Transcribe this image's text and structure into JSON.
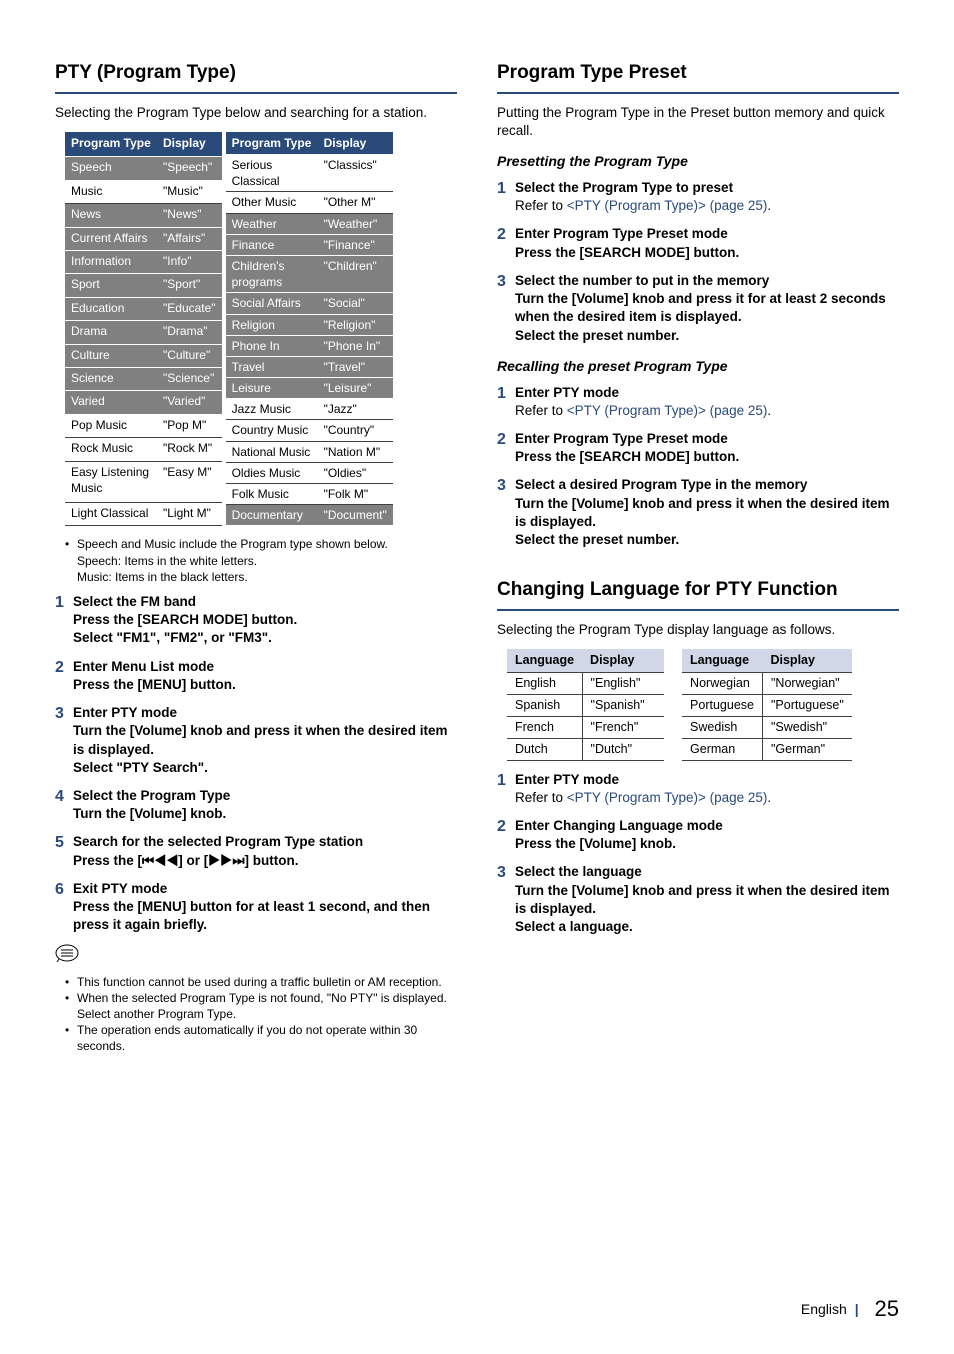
{
  "left": {
    "heading": "PTY (Program Type)",
    "intro": "Selecting the Program Type below and searching for a station.",
    "table_headers": {
      "c1": "Program Type",
      "c2": "Display"
    },
    "table1": [
      {
        "t": "Speech",
        "d": "\"Speech\"",
        "s": true
      },
      {
        "t": "Music",
        "d": "\"Music\"",
        "s": false
      },
      {
        "t": "News",
        "d": "\"News\"",
        "s": true
      },
      {
        "t": "Current Affairs",
        "d": "\"Affairs\"",
        "s": true
      },
      {
        "t": "Information",
        "d": "\"Info\"",
        "s": true
      },
      {
        "t": "Sport",
        "d": "\"Sport\"",
        "s": true
      },
      {
        "t": "Education",
        "d": "\"Educate\"",
        "s": true
      },
      {
        "t": "Drama",
        "d": "\"Drama\"",
        "s": true
      },
      {
        "t": "Culture",
        "d": "\"Culture\"",
        "s": true
      },
      {
        "t": "Science",
        "d": "\"Science\"",
        "s": true
      },
      {
        "t": "Varied",
        "d": "\"Varied\"",
        "s": true
      },
      {
        "t": "Pop Music",
        "d": "\"Pop M\"",
        "s": false
      },
      {
        "t": "Rock Music",
        "d": "\"Rock M\"",
        "s": false
      },
      {
        "t": "Easy Listening Music",
        "d": "\"Easy M\"",
        "s": false
      },
      {
        "t": "Light Classical",
        "d": "\"Light M\"",
        "s": false
      }
    ],
    "table2": [
      {
        "t": "Serious Classical",
        "d": "\"Classics\"",
        "s": false
      },
      {
        "t": "Other Music",
        "d": "\"Other M\"",
        "s": false
      },
      {
        "t": "Weather",
        "d": "\"Weather\"",
        "s": true
      },
      {
        "t": "Finance",
        "d": "\"Finance\"",
        "s": true
      },
      {
        "t": "Children's programs",
        "d": "\"Children\"",
        "s": true
      },
      {
        "t": "Social Affairs",
        "d": "\"Social\"",
        "s": true
      },
      {
        "t": "Religion",
        "d": "\"Religion\"",
        "s": true
      },
      {
        "t": "Phone In",
        "d": "\"Phone In\"",
        "s": true
      },
      {
        "t": "Travel",
        "d": "\"Travel\"",
        "s": true
      },
      {
        "t": "Leisure",
        "d": "\"Leisure\"",
        "s": true
      },
      {
        "t": "Jazz Music",
        "d": "\"Jazz\"",
        "s": false
      },
      {
        "t": "Country Music",
        "d": "\"Country\"",
        "s": false
      },
      {
        "t": "National Music",
        "d": "\"Nation M\"",
        "s": false
      },
      {
        "t": "Oldies Music",
        "d": "\"Oldies\"",
        "s": false
      },
      {
        "t": "Folk Music",
        "d": "\"Folk M\"",
        "s": false
      },
      {
        "t": "Documentary",
        "d": "\"Document\"",
        "s": true
      }
    ],
    "note1_a": "Speech and Music include the Program type shown below.",
    "note1_b": "Speech: Items in the white letters.",
    "note1_c": "Music: Items in the black letters.",
    "steps": [
      {
        "n": "1",
        "title": "Select the FM band",
        "lines": [
          "Press the [SEARCH MODE] button.",
          "Select \"FM1\", \"FM2\", or \"FM3\"."
        ]
      },
      {
        "n": "2",
        "title": "Enter Menu List mode",
        "lines": [
          "Press the [MENU] button."
        ]
      },
      {
        "n": "3",
        "title": "Enter PTY mode",
        "lines": [
          "Turn the [Volume] knob and press it when the desired item is displayed.",
          "Select \"PTY Search\"."
        ]
      },
      {
        "n": "4",
        "title": "Select the Program Type",
        "lines": [
          "Turn the [Volume] knob."
        ]
      },
      {
        "n": "5",
        "title": "Search for the selected Program Type station",
        "lines": [
          "Press the [⏮◀◀] or [▶▶⏭] button."
        ]
      },
      {
        "n": "6",
        "title": "Exit PTY mode",
        "lines": [
          "Press the [MENU] button for at least 1 second, and then press it again briefly."
        ]
      }
    ],
    "note2_a": "This function cannot be used during a traffic bulletin or AM reception.",
    "note2_b": "When the selected Program Type is not found, \"No PTY\" is displayed. Select another Program Type.",
    "note2_c": "The operation ends automatically if you do not operate within 30 seconds."
  },
  "right": {
    "heading1": "Program Type Preset",
    "intro1": "Putting the Program Type in the Preset button memory and quick recall.",
    "sub1": "Presetting the Program Type",
    "preset_steps": [
      {
        "n": "1",
        "title": "Select the Program Type to preset",
        "refer_pre": "Refer to ",
        "refer_link": "<PTY (Program Type)> (page 25)",
        "refer_post": "."
      },
      {
        "n": "2",
        "title": "Enter Program Type Preset mode",
        "lines": [
          "Press the [SEARCH MODE] button."
        ]
      },
      {
        "n": "3",
        "title": "Select the number to put in the memory",
        "lines": [
          "Turn the [Volume] knob and press it for at least 2 seconds when the desired item is displayed.",
          "Select the preset number."
        ]
      }
    ],
    "sub2": "Recalling the preset Program Type",
    "recall_steps": [
      {
        "n": "1",
        "title": "Enter PTY mode",
        "refer_pre": "Refer to ",
        "refer_link": "<PTY (Program Type)> (page 25)",
        "refer_post": "."
      },
      {
        "n": "2",
        "title": "Enter Program Type Preset mode",
        "lines": [
          "Press the [SEARCH MODE] button."
        ]
      },
      {
        "n": "3",
        "title": "Select a desired Program Type in the memory",
        "lines": [
          "Turn the [Volume] knob and press it when the desired item is displayed.",
          "Select the preset number."
        ]
      }
    ],
    "heading2": "Changing Language for PTY Function",
    "intro2": "Selecting the Program Type display language as follows.",
    "lang_headers": {
      "c1": "Language",
      "c2": "Display"
    },
    "lang1": [
      {
        "l": "English",
        "d": "\"English\""
      },
      {
        "l": "Spanish",
        "d": "\"Spanish\""
      },
      {
        "l": "French",
        "d": "\"French\""
      },
      {
        "l": "Dutch",
        "d": "\"Dutch\""
      }
    ],
    "lang2": [
      {
        "l": "Norwegian",
        "d": "\"Norwegian\""
      },
      {
        "l": "Portuguese",
        "d": "\"Portuguese\""
      },
      {
        "l": "Swedish",
        "d": "\"Swedish\""
      },
      {
        "l": "German",
        "d": "\"German\""
      }
    ],
    "lang_steps": [
      {
        "n": "1",
        "title": "Enter PTY mode",
        "refer_pre": "Refer to ",
        "refer_link": "<PTY (Program Type)> (page 25)",
        "refer_post": "."
      },
      {
        "n": "2",
        "title": "Enter Changing Language mode",
        "lines": [
          "Press the [Volume] knob."
        ]
      },
      {
        "n": "3",
        "title": "Select the language",
        "lines": [
          "Turn the [Volume] knob and press it when the desired item is displayed.",
          "Select a language."
        ]
      }
    ]
  },
  "footer": {
    "lang": "English",
    "page": "25"
  }
}
